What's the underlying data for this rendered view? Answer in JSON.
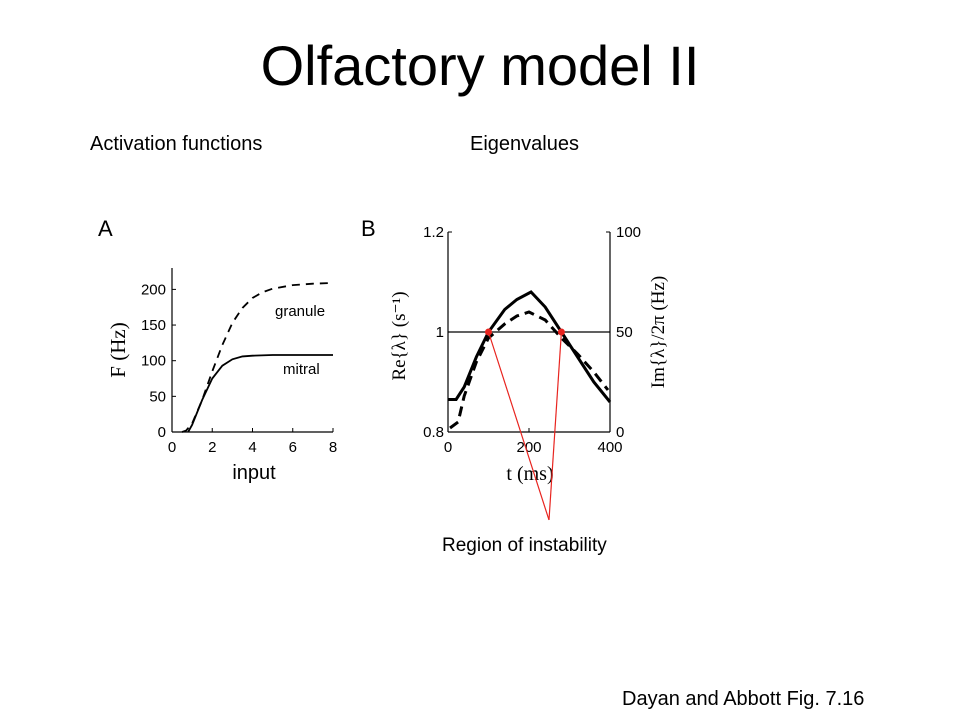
{
  "slide": {
    "title": "Olfactory model II",
    "subtitle_left": "Activation functions",
    "subtitle_right": "Eigenvalues",
    "caption": "Dayan and Abbott Fig. 7.16",
    "annotation": "Region of instability",
    "annotation_color": "#e8241f"
  },
  "chart_data": [
    {
      "panel": "A",
      "type": "line",
      "xlabel": "input",
      "ylabel": "F (Hz)",
      "xlim": [
        0,
        8
      ],
      "ylim": [
        0,
        230
      ],
      "xticks": [
        "0",
        "2",
        "4",
        "6",
        "8"
      ],
      "yticks": [
        "0",
        "50",
        "100",
        "150",
        "200"
      ],
      "series": [
        {
          "name": "granule",
          "style": "dashed",
          "x": [
            0.5,
            0.7,
            1.0,
            1.5,
            2.0,
            2.5,
            3.0,
            3.5,
            4.0,
            4.5,
            5.0,
            6.0,
            7.0,
            8.0
          ],
          "y": [
            0,
            2,
            12,
            45,
            85,
            122,
            153,
            174,
            188,
            196,
            201,
            206,
            208,
            209
          ]
        },
        {
          "name": "mitral",
          "style": "solid",
          "x": [
            0.8,
            1.0,
            1.5,
            2.0,
            2.5,
            3.0,
            3.5,
            4.0,
            5.0,
            6.0,
            8.0
          ],
          "y": [
            0,
            10,
            45,
            75,
            93,
            102,
            106,
            107,
            108,
            108,
            108
          ]
        }
      ]
    },
    {
      "panel": "B",
      "type": "line",
      "xlabel": "t (ms)",
      "ylabel_left": "Re{λ} (s⁻¹)",
      "ylabel_right": "Im{λ}/2π (Hz)",
      "xlim": [
        0,
        400
      ],
      "ylim_left": [
        0.8,
        1.2
      ],
      "ylim_right": [
        0,
        100
      ],
      "xticks": [
        "0",
        "200",
        "400"
      ],
      "yticks_left": [
        "0.8",
        "1",
        "1.2"
      ],
      "yticks_right": [
        "0",
        "50",
        "100"
      ],
      "reference_line": 1,
      "series": [
        {
          "style": "solid",
          "axis": "left",
          "x": [
            0,
            20,
            40,
            70,
            100,
            140,
            170,
            205,
            240,
            280,
            320,
            360,
            400
          ],
          "y": [
            0.865,
            0.865,
            0.89,
            0.95,
            1.0,
            1.045,
            1.065,
            1.08,
            1.05,
            1.0,
            0.95,
            0.9,
            0.86
          ]
        },
        {
          "style": "dashed",
          "axis": "right",
          "x": [
            5,
            25,
            40,
            70,
            100,
            140,
            170,
            200,
            240,
            280,
            320,
            360,
            395
          ],
          "y": [
            2,
            5,
            18,
            35,
            47,
            54,
            58,
            60,
            56,
            47,
            39,
            30,
            21
          ]
        }
      ],
      "markers_x": [
        100,
        280
      ]
    }
  ]
}
